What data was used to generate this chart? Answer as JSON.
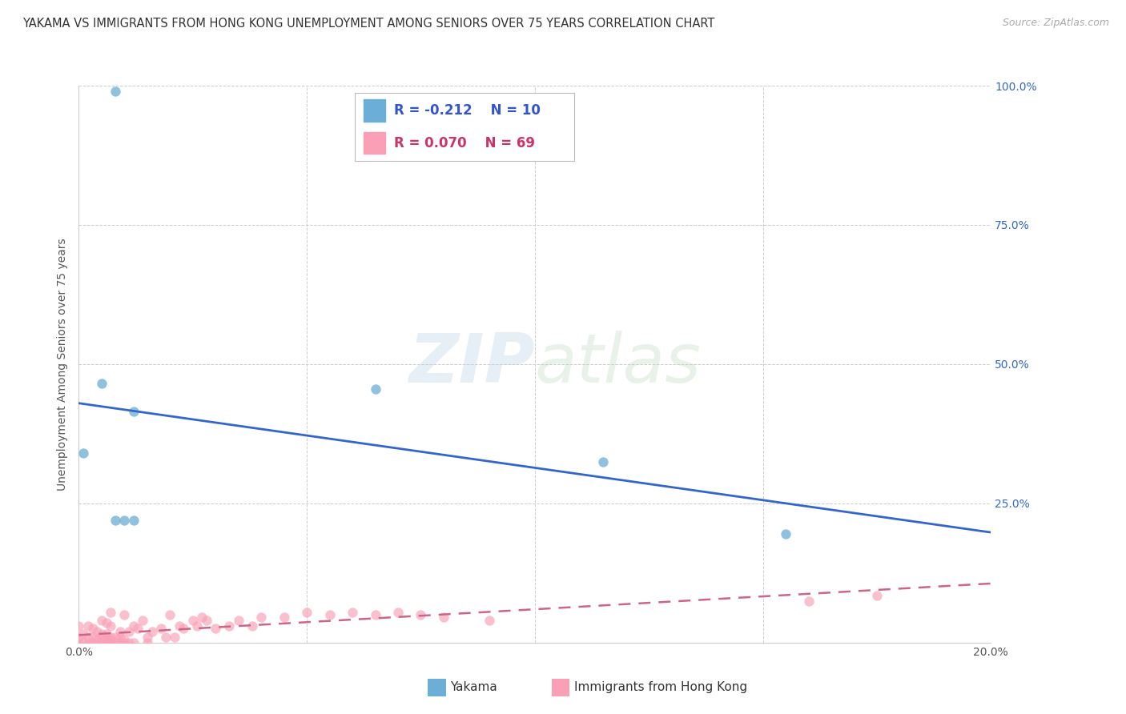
{
  "title": "YAKAMA VS IMMIGRANTS FROM HONG KONG UNEMPLOYMENT AMONG SENIORS OVER 75 YEARS CORRELATION CHART",
  "source": "Source: ZipAtlas.com",
  "ylabel": "Unemployment Among Seniors over 75 years",
  "x_min": 0.0,
  "x_max": 0.2,
  "y_min": 0.0,
  "y_max": 1.0,
  "x_ticks": [
    0.0,
    0.05,
    0.1,
    0.15,
    0.2
  ],
  "x_tick_labels": [
    "0.0%",
    "",
    "",
    "",
    "20.0%"
  ],
  "y_ticks_right": [
    0.0,
    0.25,
    0.5,
    0.75,
    1.0
  ],
  "y_tick_labels_right": [
    "",
    "25.0%",
    "50.0%",
    "75.0%",
    "100.0%"
  ],
  "grid_color": "#cccccc",
  "background_color": "#ffffff",
  "watermark_line1": "ZIP",
  "watermark_line2": "atlas",
  "yakama_color": "#6baed6",
  "hk_color": "#fa9fb5",
  "trend_blue": "#3366cc",
  "trend_pink": "#cc6688",
  "legend_r_yakama": "R = -0.212",
  "legend_n_yakama": "N = 10",
  "legend_r_hk": "R = 0.070",
  "legend_n_hk": "N = 69",
  "legend_label_yakama": "Yakama",
  "legend_label_hk": "Immigrants from Hong Kong",
  "yakama_x": [
    0.008,
    0.005,
    0.012,
    0.001,
    0.065,
    0.115,
    0.155,
    0.012,
    0.008,
    0.01
  ],
  "yakama_y": [
    0.99,
    0.465,
    0.415,
    0.34,
    0.455,
    0.325,
    0.195,
    0.22,
    0.22,
    0.22
  ],
  "hk_x": [
    0.0,
    0.0,
    0.0,
    0.001,
    0.001,
    0.002,
    0.002,
    0.002,
    0.003,
    0.003,
    0.003,
    0.004,
    0.004,
    0.005,
    0.005,
    0.005,
    0.005,
    0.006,
    0.006,
    0.006,
    0.006,
    0.007,
    0.007,
    0.007,
    0.007,
    0.007,
    0.008,
    0.008,
    0.009,
    0.009,
    0.009,
    0.01,
    0.01,
    0.01,
    0.011,
    0.011,
    0.012,
    0.012,
    0.013,
    0.014,
    0.015,
    0.015,
    0.016,
    0.018,
    0.019,
    0.02,
    0.021,
    0.022,
    0.023,
    0.025,
    0.026,
    0.027,
    0.028,
    0.03,
    0.033,
    0.035,
    0.038,
    0.04,
    0.045,
    0.05,
    0.055,
    0.06,
    0.065,
    0.07,
    0.075,
    0.08,
    0.09,
    0.16,
    0.175
  ],
  "hk_y": [
    0.0,
    0.01,
    0.03,
    0.0,
    0.015,
    0.0,
    0.01,
    0.03,
    0.0,
    0.01,
    0.025,
    0.005,
    0.02,
    0.0,
    0.005,
    0.015,
    0.04,
    0.0,
    0.005,
    0.015,
    0.035,
    0.0,
    0.005,
    0.01,
    0.03,
    0.055,
    0.0,
    0.01,
    0.0,
    0.01,
    0.02,
    0.0,
    0.005,
    0.05,
    0.0,
    0.02,
    0.0,
    0.03,
    0.025,
    0.04,
    0.0,
    0.01,
    0.02,
    0.025,
    0.01,
    0.05,
    0.01,
    0.03,
    0.025,
    0.04,
    0.03,
    0.045,
    0.04,
    0.025,
    0.03,
    0.04,
    0.03,
    0.045,
    0.045,
    0.055,
    0.05,
    0.055,
    0.05,
    0.055,
    0.05,
    0.045,
    0.04,
    0.075,
    0.085
  ],
  "title_fontsize": 10.5,
  "axis_label_fontsize": 10,
  "tick_fontsize": 10,
  "legend_fontsize": 12,
  "dot_size": 80,
  "dot_alpha_yakama": 0.75,
  "dot_alpha_hk": 0.65
}
